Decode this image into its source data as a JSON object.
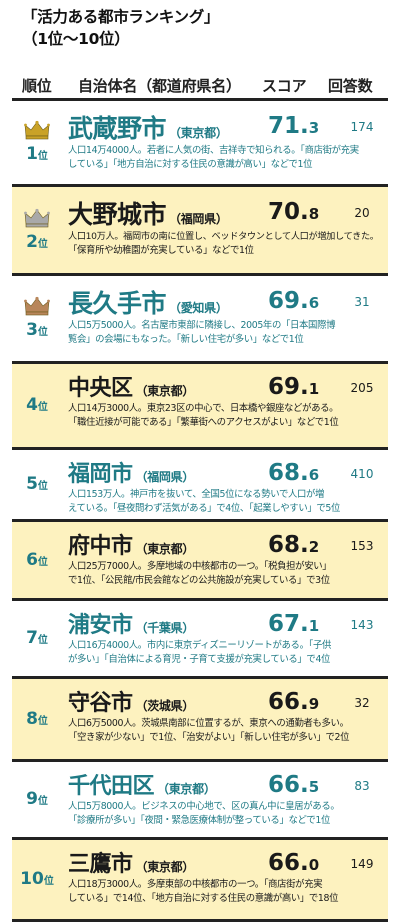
{
  "title": {
    "line1": "「活力ある都市ランキング」",
    "line2": "（1位〜10位）"
  },
  "header": {
    "rank": "順位",
    "name": "自治体名（都道府県名）",
    "score": "スコア",
    "count": "回答数"
  },
  "rows": [
    {
      "rank_num": "1",
      "rank_unit": "位",
      "crown": "gold",
      "name": "武蔵野市",
      "pref": "（東京都）",
      "score_int": "71.",
      "score_dec": "3",
      "count": "174",
      "desc1": "人口14万4000人。若者に人気の街、吉祥寺で知られる。「商店街が充実",
      "desc2": "している」「地方自治に対する住民の意識が高い」などで1位"
    },
    {
      "rank_num": "2",
      "rank_unit": "位",
      "crown": "silver",
      "name": "大野城市",
      "pref": "（福岡県）",
      "score_int": "70.",
      "score_dec": "8",
      "count": "20",
      "desc1": "人口10万人。福岡市の南に位置し、ベッドタウンとして人口が増加してきた。",
      "desc2": "「保育所や幼稚園が充実している」などで1位"
    },
    {
      "rank_num": "3",
      "rank_unit": "位",
      "crown": "bronze",
      "name": "長久手市",
      "pref": "（愛知県）",
      "score_int": "69.",
      "score_dec": "6",
      "count": "31",
      "desc1": "人口5万5000人。名古屋市東部に隣接し、2005年の「日本国際博",
      "desc2": "覧会」の会場にもなった。「新しい住宅が多い」などで1位"
    },
    {
      "rank_num": "4",
      "rank_unit": "位",
      "crown": "",
      "name": "中央区",
      "pref": "（東京都）",
      "score_int": "69.",
      "score_dec": "1",
      "count": "205",
      "desc1": "人口14万3000人。東京23区の中心で、日本橋や銀座などがある。",
      "desc2": "「職住近接が可能である」「繁華街へのアクセスがよい」などで1位"
    },
    {
      "rank_num": "5",
      "rank_unit": "位",
      "crown": "",
      "name": "福岡市",
      "pref": "（福岡県）",
      "score_int": "68.",
      "score_dec": "6",
      "count": "410",
      "desc1": "人口153万人。神戸市を抜いて、全国5位になる勢いで人口が増",
      "desc2": "えている。「昼夜問わず活気がある」で4位、「起業しやすい」で5位"
    },
    {
      "rank_num": "6",
      "rank_unit": "位",
      "crown": "",
      "name": "府中市",
      "pref": "（東京都）",
      "score_int": "68.",
      "score_dec": "2",
      "count": "153",
      "desc1": "人口25万7000人。多摩地域の中核都市の一つ。「税負担が安い」",
      "desc2": "で1位、「公民館/市民会館などの公共施設が充実している」で3位"
    },
    {
      "rank_num": "7",
      "rank_unit": "位",
      "crown": "",
      "name": "浦安市",
      "pref": "（千葉県）",
      "score_int": "67.",
      "score_dec": "1",
      "count": "143",
      "desc1": "人口16万4000人。市内に東京ディズニーリゾートがある。「子供",
      "desc2": "が多い」「自治体による育児・子育て支援が充実している」で4位"
    },
    {
      "rank_num": "8",
      "rank_unit": "位",
      "crown": "",
      "name": "守谷市",
      "pref": "（茨城県）",
      "score_int": "66.",
      "score_dec": "9",
      "count": "32",
      "desc1": "人口6万5000人。茨城県南部に位置するが、東京への通勤者も多い。",
      "desc2": "「空き家が少ない」で1位、「治安がよい」「新しい住宅が多い」で2位"
    },
    {
      "rank_num": "9",
      "rank_unit": "位",
      "crown": "",
      "name": "千代田区",
      "pref": "（東京都）",
      "score_int": "66.",
      "score_dec": "5",
      "count": "83",
      "desc1": "人口5万8000人。ビジネスの中心地で、区の真ん中に皇居がある。",
      "desc2": "「診療所が多い」「夜間・緊急医療体制が整っている」などで1位"
    },
    {
      "rank_num": "10",
      "rank_unit": "位",
      "crown": "",
      "name": "三鷹市",
      "pref": "（東京都）",
      "score_int": "66.",
      "score_dec": "0",
      "count": "149",
      "desc1": "人口18万3000人。多摩東部の中核都市の一つ。「商店街が充実",
      "desc2": "している」で14位、「地方自治に対する住民の意識が高い」で18位"
    }
  ],
  "colors": {
    "accent": "#1f7a85",
    "shade": "#fdf2bf",
    "gold": "#c9a227",
    "silver": "#a9a9a9",
    "bronze": "#b8865a"
  }
}
